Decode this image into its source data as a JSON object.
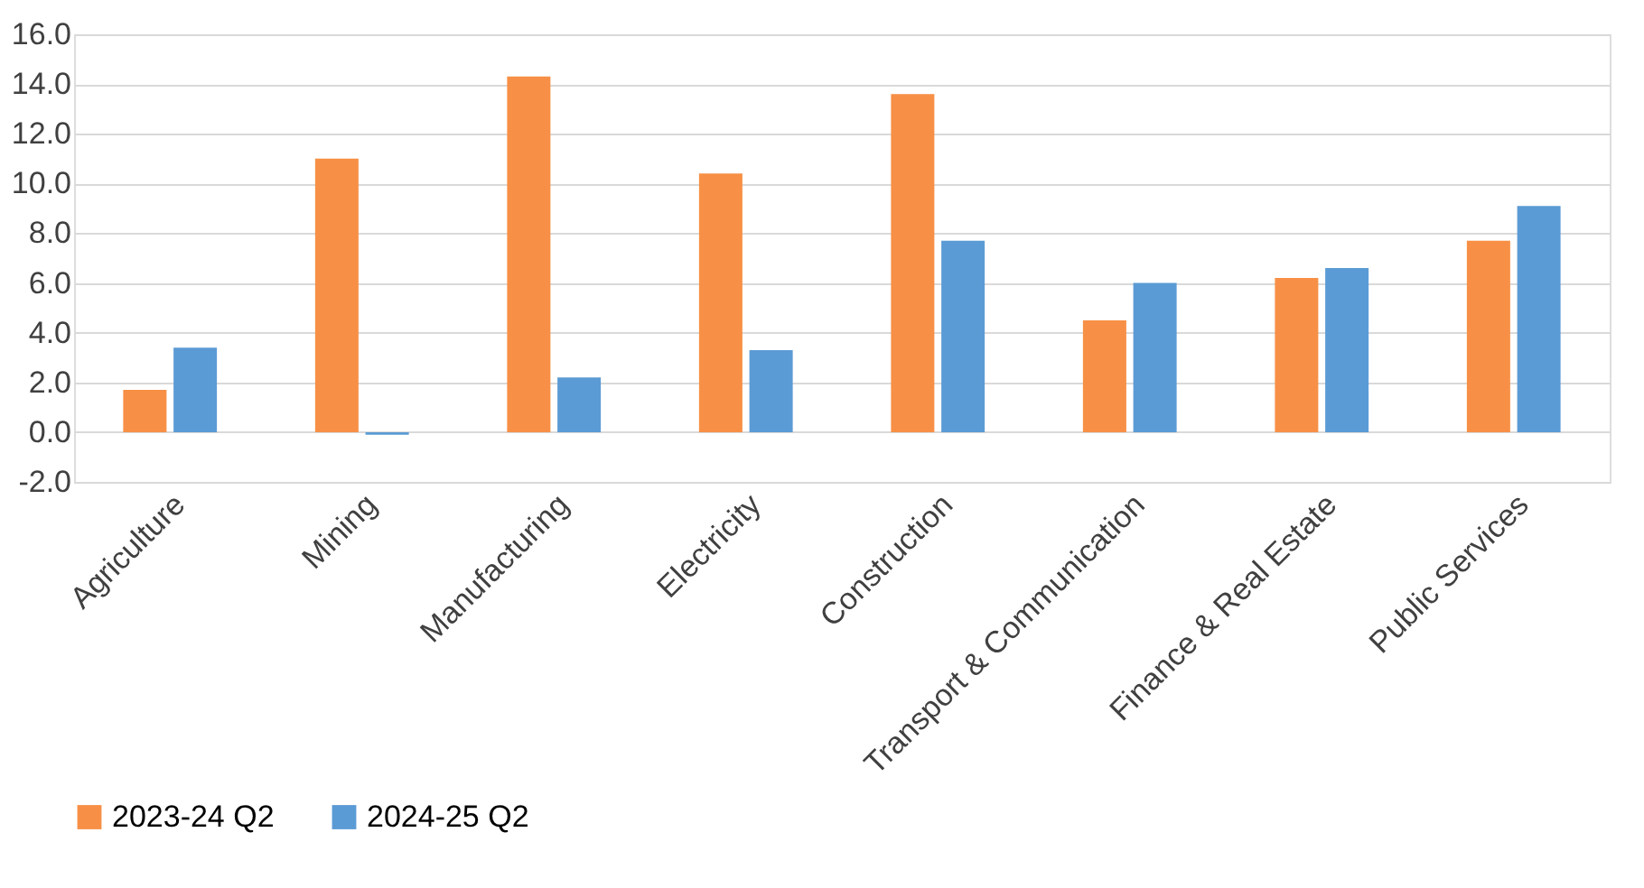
{
  "chart_data": {
    "type": "bar",
    "categories": [
      "Agriculture",
      "Mining",
      "Manufacturing",
      "Electricity",
      "Construction",
      "Transport & Communication",
      "Finance & Real Estate",
      "Public Services"
    ],
    "series": [
      {
        "name": "2023-24 Q2",
        "color": "#f79046",
        "values": [
          1.7,
          11.0,
          14.3,
          10.4,
          13.6,
          4.5,
          6.2,
          7.7
        ]
      },
      {
        "name": "2024-25 Q2",
        "color": "#5b9bd5",
        "values": [
          3.4,
          -0.1,
          2.2,
          3.3,
          7.7,
          6.0,
          6.6,
          9.1
        ]
      }
    ],
    "ylim": [
      -2,
      16
    ],
    "yticks": [
      {
        "value": -2,
        "label": "-2.0"
      },
      {
        "value": 0,
        "label": "0.0"
      },
      {
        "value": 2,
        "label": "2.0"
      },
      {
        "value": 4,
        "label": "4.0"
      },
      {
        "value": 6,
        "label": "6.0"
      },
      {
        "value": 8,
        "label": "8.0"
      },
      {
        "value": 10,
        "label": "10.0"
      },
      {
        "value": 12,
        "label": "12.0"
      },
      {
        "value": 14,
        "label": "14.0"
      },
      {
        "value": 16,
        "label": "16.0"
      }
    ],
    "grid": "y",
    "legend": "bottom left"
  }
}
